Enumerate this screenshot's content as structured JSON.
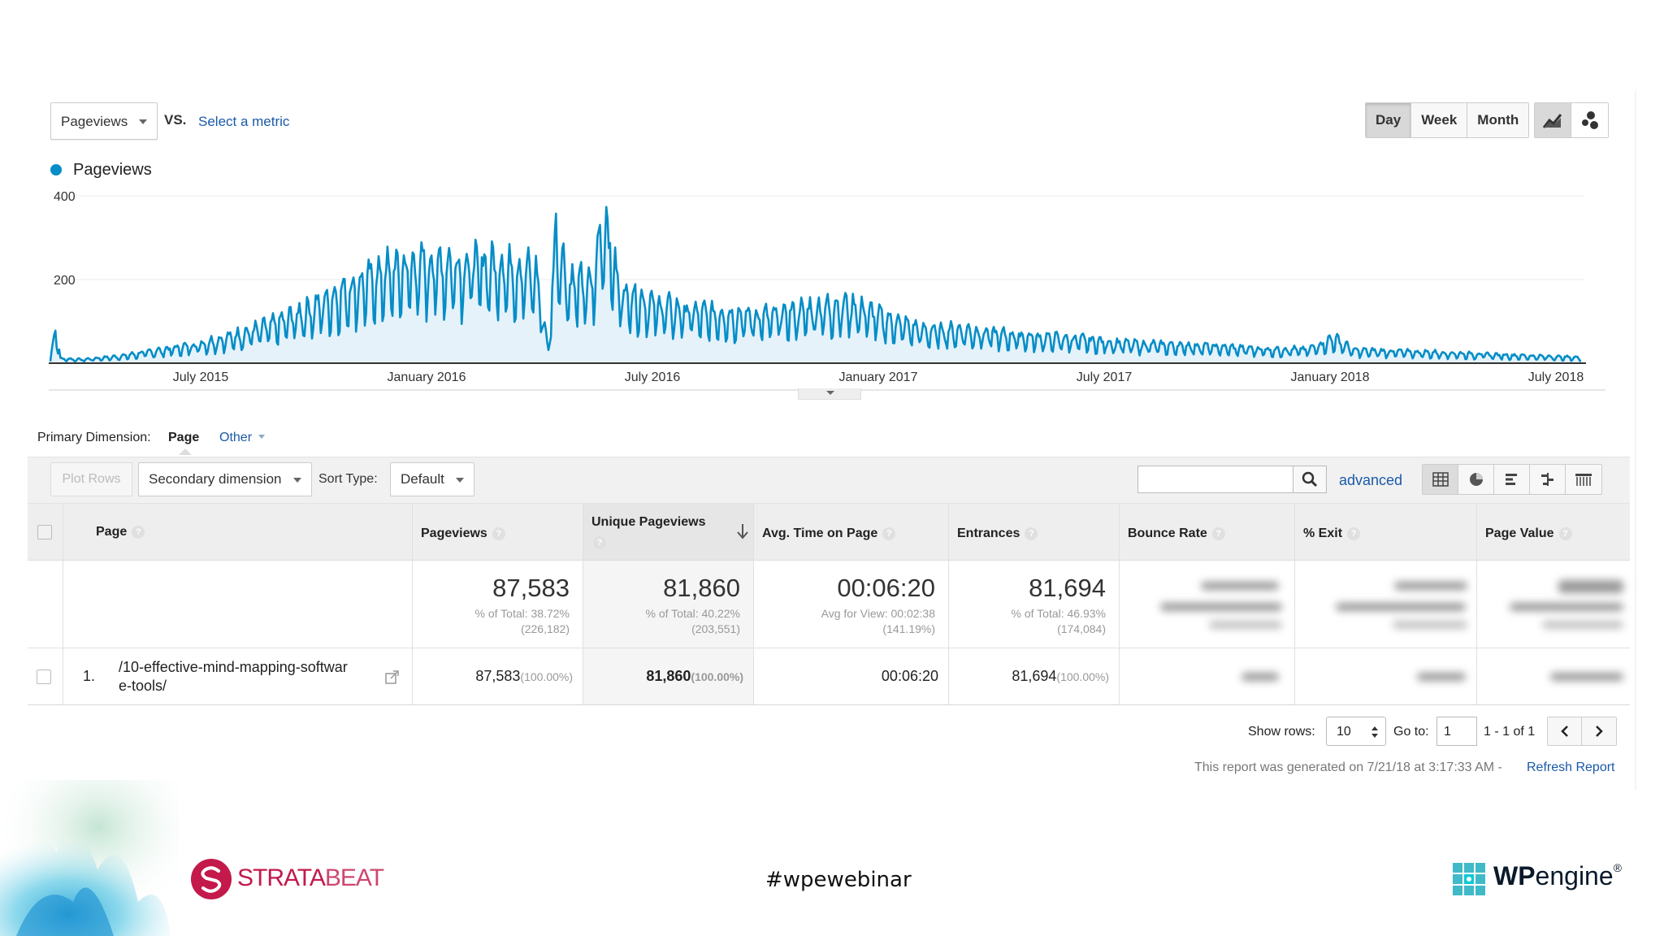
{
  "metric_select": {
    "value": "Pageviews"
  },
  "vs_label": "VS.",
  "select_metric": "Select a metric",
  "period_buttons": [
    "Day",
    "Week",
    "Month"
  ],
  "active_period": "Day",
  "legend": {
    "series": "Pageviews",
    "color": "#058dc7"
  },
  "chart_data": {
    "type": "area",
    "series": [
      {
        "name": "Pageviews",
        "color": "#058dc7"
      }
    ],
    "y_ticks": [
      "400",
      "200"
    ],
    "ylim": [
      0,
      400
    ],
    "x_tick_labels": [
      "July 2015",
      "January 2016",
      "July 2016",
      "January 2017",
      "July 2017",
      "January 2018",
      "July 2018"
    ],
    "x_range": [
      "2015-03-21",
      "2018-07-20"
    ],
    "grid": true,
    "trend_points": [
      [
        "2015-03-21",
        4
      ],
      [
        "2015-03-25",
        82
      ],
      [
        "2015-03-29",
        10
      ],
      [
        "2015-04-15",
        8
      ],
      [
        "2015-05-15",
        15
      ],
      [
        "2015-06-15",
        28
      ],
      [
        "2015-07-15",
        40
      ],
      [
        "2015-08-15",
        60
      ],
      [
        "2015-09-15",
        85
      ],
      [
        "2015-10-15",
        120
      ],
      [
        "2015-11-15",
        165
      ],
      [
        "2015-12-15",
        200
      ],
      [
        "2016-01-15",
        215
      ],
      [
        "2016-02-15",
        215
      ],
      [
        "2016-03-15",
        212
      ],
      [
        "2016-04-10",
        195
      ],
      [
        "2016-04-20",
        30
      ],
      [
        "2016-04-26",
        290
      ],
      [
        "2016-05-05",
        175
      ],
      [
        "2016-05-25",
        170
      ],
      [
        "2016-06-03",
        330
      ],
      [
        "2016-06-15",
        160
      ],
      [
        "2016-07-15",
        125
      ],
      [
        "2016-08-15",
        110
      ],
      [
        "2016-09-15",
        105
      ],
      [
        "2016-10-15",
        102
      ],
      [
        "2016-11-15",
        118
      ],
      [
        "2016-12-15",
        128
      ],
      [
        "2017-01-15",
        95
      ],
      [
        "2017-02-15",
        70
      ],
      [
        "2017-03-15",
        72
      ],
      [
        "2017-04-15",
        62
      ],
      [
        "2017-05-15",
        56
      ],
      [
        "2017-06-15",
        52
      ],
      [
        "2017-07-15",
        44
      ],
      [
        "2017-08-15",
        40
      ],
      [
        "2017-09-15",
        38
      ],
      [
        "2017-10-15",
        34
      ],
      [
        "2017-11-15",
        30
      ],
      [
        "2017-12-15",
        30
      ],
      [
        "2018-01-05",
        55
      ],
      [
        "2018-01-20",
        28
      ],
      [
        "2018-03-15",
        24
      ],
      [
        "2018-05-15",
        18
      ],
      [
        "2018-07-20",
        12
      ]
    ]
  },
  "primary_dimension": {
    "label": "Primary Dimension:",
    "value": "Page",
    "other": "Other"
  },
  "toolbar": {
    "plot_rows": "Plot Rows",
    "secondary_dimension": "Secondary dimension",
    "sort_type_label": "Sort Type:",
    "sort_type_value": "Default",
    "search_value": "",
    "advanced": "advanced"
  },
  "table": {
    "headers": {
      "page": "Page",
      "pageviews": "Pageviews",
      "unique_pageviews": "Unique Pageviews",
      "avg_time": "Avg. Time on Page",
      "entrances": "Entrances",
      "bounce_rate": "Bounce Rate",
      "exit": "% Exit",
      "page_value": "Page Value"
    },
    "help_glyph": "?",
    "totals": {
      "pageviews": {
        "value": "87,583",
        "pct": "% of Total: 38.72%",
        "of": "(226,182)"
      },
      "unique_pageviews": {
        "value": "81,860",
        "pct": "% of Total: 40.22%",
        "of": "(203,551)"
      },
      "avg_time": {
        "value": "00:06:20",
        "pct": "Avg for View: 00:02:38",
        "of": "(141.19%)"
      },
      "entrances": {
        "value": "81,694",
        "pct": "% of Total: 46.93%",
        "of": "(174,084)"
      }
    },
    "rows": [
      {
        "index": "1.",
        "page_line1": "/10-effective-mind-mapping-softwar",
        "page_line2": "e-tools/",
        "pageviews": "87,583",
        "pageviews_pct": "(100.00%)",
        "unique_pageviews": "81,860",
        "unique_pageviews_pct": "(100.00%)",
        "avg_time": "00:06:20",
        "entrances": "81,694",
        "entrances_pct": "(100.00%)"
      }
    ]
  },
  "pagination": {
    "show_rows_label": "Show rows:",
    "show_rows_value": "10",
    "goto_label": "Go to:",
    "goto_value": "1",
    "range": "1 - 1 of 1"
  },
  "report_note": "This report was generated on 7/21/18 at 3:17:33 AM -",
  "refresh": "Refresh Report",
  "slide_footer": {
    "stratabeat_strata": "STRATA",
    "stratabeat_beat": "BEAT",
    "hashtag": "#wpewebinar",
    "wpengine_wp": "WP",
    "wpengine_engine": "engine",
    "wpengine_tm": "®"
  }
}
